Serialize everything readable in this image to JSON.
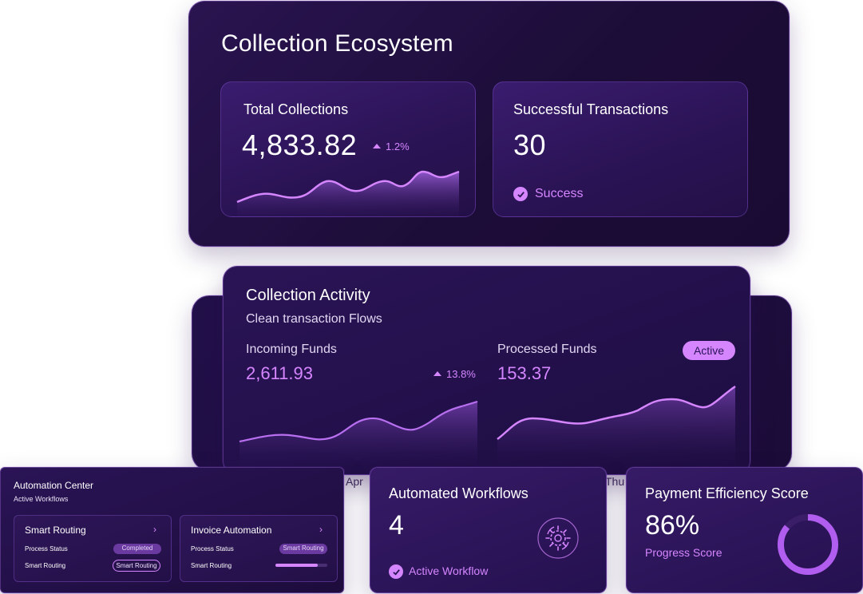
{
  "ecosystem": {
    "title": "Collection Ecosystem",
    "total_collections": {
      "label": "Total Collections",
      "value": "4,833.82",
      "change": "1.2%"
    },
    "successful_transactions": {
      "label": "Successful Transactions",
      "value": "30",
      "status": "Success"
    }
  },
  "activity": {
    "title": "Collection Activity",
    "subtitle": "Clean transaction Flows",
    "incoming": {
      "label": "Incoming Funds",
      "value": "2,611.93",
      "change": "13.8%"
    },
    "processed": {
      "label": "Processed Funds",
      "value": "153.37",
      "badge": "Active"
    },
    "axis_left": "Apr",
    "axis_right": "Thu"
  },
  "automation": {
    "title": "Automation Center",
    "subtitle": "Active Workflows",
    "cards": [
      {
        "title": "Smart Routing",
        "row1_label": "Process Status",
        "row1_value": "Completed",
        "row2_label": "Smart Routing",
        "row2_value": "Smart Routing"
      },
      {
        "title": "Invoice Automation",
        "row1_label": "Process Status",
        "row1_value": "Smart Routing",
        "row2_label": "Smart Routing",
        "row2_progress": 0.82
      }
    ]
  },
  "workflows": {
    "title": "Automated Workflows",
    "value": "4",
    "status": "Active Workflow",
    "icon": "gear-workflow-icon"
  },
  "efficiency": {
    "title": "Payment Efficiency Score",
    "value": "86%",
    "caption": "Progress Score",
    "score": 0.86
  },
  "colors": {
    "accent": "#d586ff",
    "panel_bg": "#1c0d38",
    "card_bg": "#2a1354"
  }
}
